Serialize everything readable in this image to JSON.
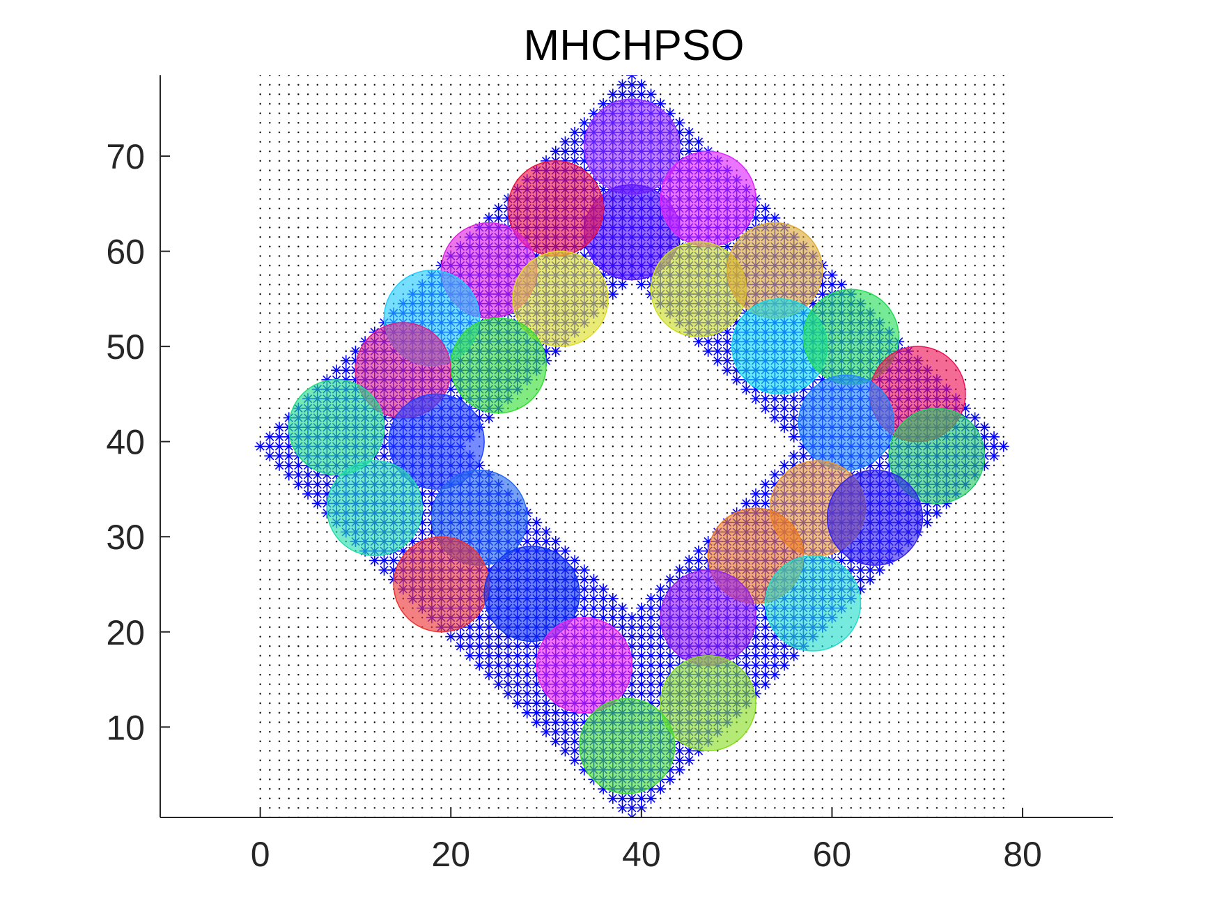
{
  "chart_data": {
    "type": "scatter",
    "title": "MHCHPSO",
    "xlabel": "",
    "ylabel": "",
    "xlim": [
      -10.5,
      89.5
    ],
    "ylim": [
      0.5,
      78.5
    ],
    "xticks": [
      0,
      20,
      40,
      60,
      80
    ],
    "yticks": [
      10,
      20,
      30,
      40,
      50,
      60,
      70
    ],
    "grid": false,
    "legend": "none",
    "background_grid": {
      "x_range": [
        0,
        78
      ],
      "y_range": [
        0.5,
        78.5
      ],
      "step": 1,
      "color": "#000000"
    },
    "region": {
      "shape": "diamond",
      "center": [
        39,
        39.5
      ],
      "outer_radius": 39,
      "inner_radius": 18,
      "color": "#0000ff"
    },
    "sensor_radius": 5,
    "circles": [
      {
        "x": 39,
        "y": 71,
        "color": "#9933ff"
      },
      {
        "x": 39,
        "y": 62,
        "color": "#5511ff"
      },
      {
        "x": 31,
        "y": 64.5,
        "color": "#ee1144"
      },
      {
        "x": 47,
        "y": 65.5,
        "color": "#dd22ff"
      },
      {
        "x": 24,
        "y": 58,
        "color": "#dd22dd"
      },
      {
        "x": 31.5,
        "y": 55,
        "color": "#dddd22"
      },
      {
        "x": 46,
        "y": 56,
        "color": "#ccdd22"
      },
      {
        "x": 54,
        "y": 58,
        "color": "#ddaa33"
      },
      {
        "x": 18,
        "y": 53,
        "color": "#22ccff"
      },
      {
        "x": 25,
        "y": 48,
        "color": "#33dd33"
      },
      {
        "x": 15,
        "y": 47.5,
        "color": "#dd2288"
      },
      {
        "x": 54.5,
        "y": 50,
        "color": "#11ddee"
      },
      {
        "x": 62,
        "y": 51,
        "color": "#22dd55"
      },
      {
        "x": 69,
        "y": 45,
        "color": "#ee1155"
      },
      {
        "x": 8,
        "y": 41.5,
        "color": "#22dd88"
      },
      {
        "x": 18.5,
        "y": 40,
        "color": "#2244ff"
      },
      {
        "x": 61.5,
        "y": 42,
        "color": "#2288ff"
      },
      {
        "x": 71,
        "y": 38.5,
        "color": "#22cc66"
      },
      {
        "x": 12,
        "y": 33,
        "color": "#22ddaa"
      },
      {
        "x": 23,
        "y": 32,
        "color": "#2266ee"
      },
      {
        "x": 58.5,
        "y": 33,
        "color": "#ee9933"
      },
      {
        "x": 64.5,
        "y": 32,
        "color": "#3322ee"
      },
      {
        "x": 19,
        "y": 25,
        "color": "#ee3333"
      },
      {
        "x": 52,
        "y": 28,
        "color": "#ee7722"
      },
      {
        "x": 28.5,
        "y": 24,
        "color": "#1133ee"
      },
      {
        "x": 58,
        "y": 23,
        "color": "#22ddcc"
      },
      {
        "x": 47,
        "y": 21.5,
        "color": "#9922ee"
      },
      {
        "x": 34,
        "y": 16.5,
        "color": "#ee22ee"
      },
      {
        "x": 47,
        "y": 12.5,
        "color": "#88dd22"
      },
      {
        "x": 38.5,
        "y": 8,
        "color": "#44dd33"
      }
    ]
  }
}
